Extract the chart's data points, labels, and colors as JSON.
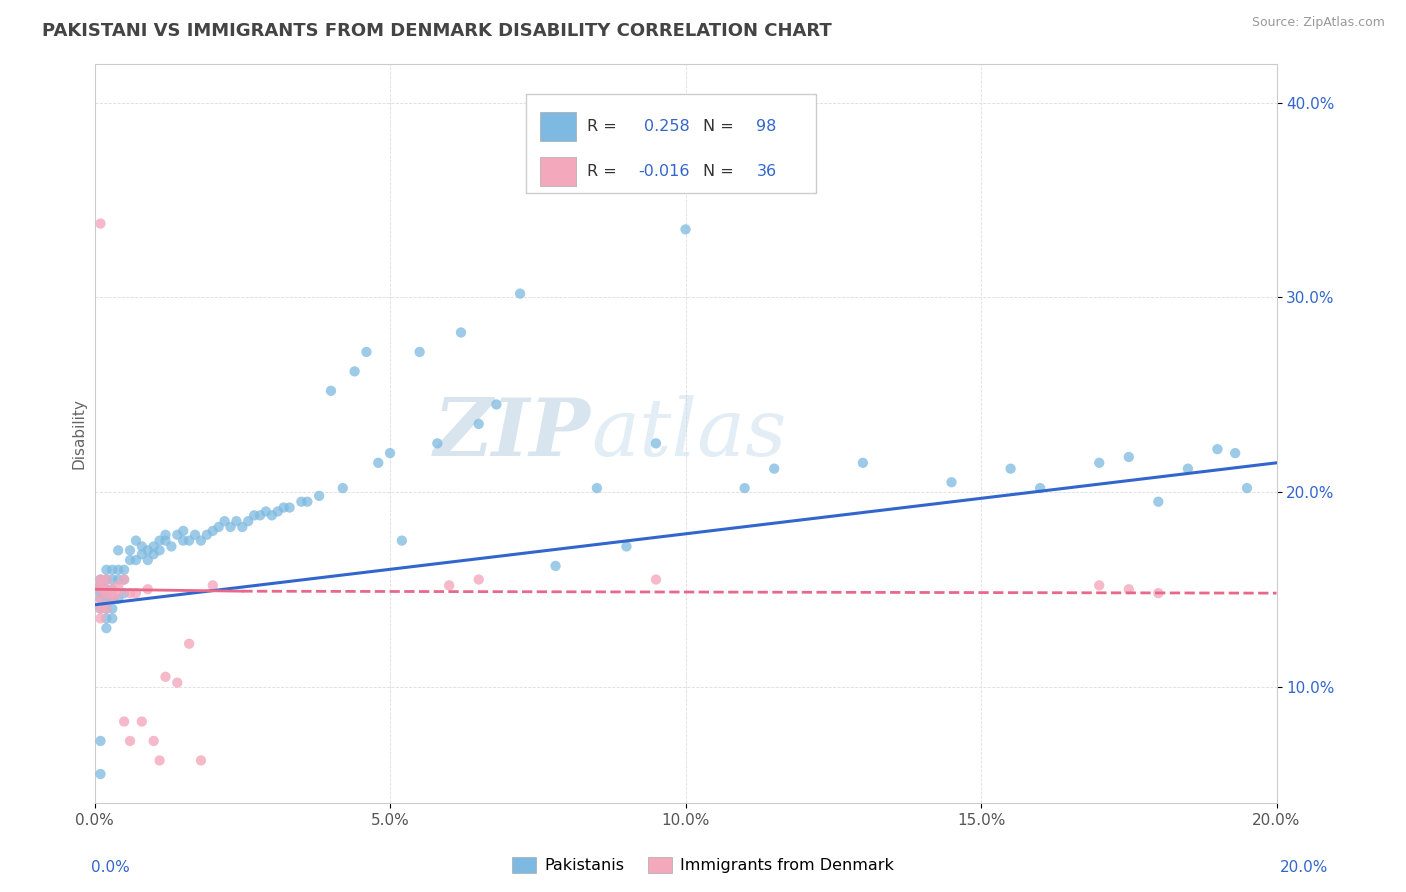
{
  "title": "PAKISTANI VS IMMIGRANTS FROM DENMARK DISABILITY CORRELATION CHART",
  "source": "Source: ZipAtlas.com",
  "ylabel_label": "Disability",
  "x_min": 0.0,
  "x_max": 0.2,
  "y_min": 0.04,
  "y_max": 0.42,
  "x_ticks": [
    0.0,
    0.05,
    0.1,
    0.15,
    0.2
  ],
  "x_tick_labels": [
    "0.0%",
    "5.0%",
    "10.0%",
    "15.0%",
    "20.0%"
  ],
  "y_ticks": [
    0.1,
    0.2,
    0.3,
    0.4
  ],
  "y_tick_labels": [
    "10.0%",
    "20.0%",
    "30.0%",
    "40.0%"
  ],
  "color_blue": "#7db9e0",
  "color_pink": "#f4a8bc",
  "trendline_blue": "#3366cc",
  "trendline_pink": "#e8688a",
  "watermark_zip": "ZIP",
  "watermark_atlas": "atlas",
  "grid_color": "#dddddd",
  "legend_box_color": "#cccccc",
  "r1_val": "0.258",
  "r2_val": "-0.016",
  "n1_val": "98",
  "n2_val": "36",
  "blue_val_color": "#3366cc",
  "text_dark": "#333333",
  "yaxis_color": "#3366cc",
  "source_color": "#999999",
  "title_color": "#444444",
  "pakistanis_x": [
    0.001,
    0.001,
    0.001,
    0.001,
    0.001,
    0.001,
    0.001,
    0.001,
    0.002,
    0.002,
    0.002,
    0.002,
    0.002,
    0.002,
    0.002,
    0.003,
    0.003,
    0.003,
    0.003,
    0.003,
    0.003,
    0.004,
    0.004,
    0.004,
    0.004,
    0.005,
    0.005,
    0.005,
    0.006,
    0.006,
    0.007,
    0.007,
    0.008,
    0.008,
    0.009,
    0.009,
    0.01,
    0.01,
    0.011,
    0.011,
    0.012,
    0.012,
    0.013,
    0.014,
    0.015,
    0.015,
    0.016,
    0.017,
    0.018,
    0.019,
    0.02,
    0.021,
    0.022,
    0.023,
    0.024,
    0.025,
    0.026,
    0.027,
    0.028,
    0.029,
    0.03,
    0.031,
    0.032,
    0.033,
    0.035,
    0.036,
    0.038,
    0.04,
    0.042,
    0.044,
    0.046,
    0.048,
    0.05,
    0.052,
    0.055,
    0.058,
    0.062,
    0.065,
    0.068,
    0.072,
    0.078,
    0.085,
    0.09,
    0.095,
    0.1,
    0.11,
    0.115,
    0.13,
    0.145,
    0.155,
    0.16,
    0.17,
    0.175,
    0.18,
    0.185,
    0.19,
    0.193,
    0.195
  ],
  "pakistanis_y": [
    0.145,
    0.148,
    0.15,
    0.152,
    0.155,
    0.14,
    0.135,
    0.13,
    0.145,
    0.15,
    0.155,
    0.16,
    0.14,
    0.135,
    0.13,
    0.145,
    0.15,
    0.155,
    0.16,
    0.135,
    0.14,
    0.155,
    0.16,
    0.145,
    0.17,
    0.155,
    0.16,
    0.148,
    0.165,
    0.17,
    0.165,
    0.175,
    0.168,
    0.172,
    0.165,
    0.17,
    0.168,
    0.172,
    0.17,
    0.175,
    0.175,
    0.178,
    0.172,
    0.178,
    0.175,
    0.18,
    0.175,
    0.178,
    0.175,
    0.178,
    0.18,
    0.182,
    0.185,
    0.182,
    0.185,
    0.182,
    0.185,
    0.188,
    0.188,
    0.19,
    0.188,
    0.19,
    0.192,
    0.192,
    0.195,
    0.195,
    0.198,
    0.252,
    0.202,
    0.262,
    0.272,
    0.215,
    0.22,
    0.175,
    0.272,
    0.225,
    0.282,
    0.235,
    0.245,
    0.302,
    0.162,
    0.202,
    0.172,
    0.225,
    0.335,
    0.202,
    0.212,
    0.215,
    0.205,
    0.212,
    0.202,
    0.215,
    0.218,
    0.195,
    0.212,
    0.222,
    0.22,
    0.202
  ],
  "denmark_x": [
    0.001,
    0.001,
    0.001,
    0.001,
    0.001,
    0.001,
    0.001,
    0.002,
    0.002,
    0.002,
    0.002,
    0.003,
    0.003,
    0.003,
    0.004,
    0.004,
    0.005,
    0.005,
    0.006,
    0.006,
    0.007,
    0.008,
    0.009,
    0.01,
    0.011,
    0.012,
    0.014,
    0.016,
    0.018,
    0.02,
    0.06,
    0.065,
    0.095,
    0.17,
    0.175,
    0.18
  ],
  "denmark_y": [
    0.148,
    0.15,
    0.145,
    0.152,
    0.155,
    0.14,
    0.135,
    0.148,
    0.15,
    0.155,
    0.14,
    0.15,
    0.148,
    0.145,
    0.148,
    0.152,
    0.155,
    0.145,
    0.148,
    0.152,
    0.148,
    0.082,
    0.15,
    0.072,
    0.092,
    0.105,
    0.102,
    0.122,
    0.062,
    0.152,
    0.152,
    0.155,
    0.155,
    0.152,
    0.15,
    0.148
  ]
}
